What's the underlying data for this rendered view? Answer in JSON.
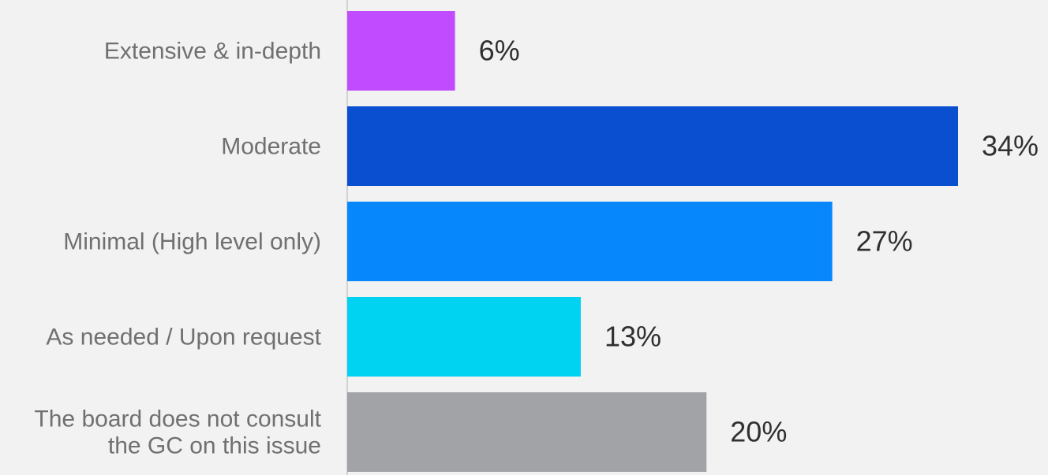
{
  "chart_data": {
    "type": "bar",
    "orientation": "horizontal",
    "categories": [
      [
        "Extensive & in-depth"
      ],
      [
        "Moderate"
      ],
      [
        "Minimal (High level only)"
      ],
      [
        "As needed / Upon request"
      ],
      [
        "The board does not consult",
        "the GC on this issue"
      ]
    ],
    "values": [
      6,
      34,
      27,
      13,
      20
    ],
    "value_labels": [
      "6%",
      "34%",
      "27%",
      "13%",
      "20%"
    ],
    "colors": [
      "#c14cff",
      "#0b4fd1",
      "#0687fb",
      "#00d2f2",
      "#a2a3a6"
    ],
    "axis_color": "#c8c8c8",
    "background": "#f2f2f2",
    "xlim": [
      0,
      34
    ],
    "grid": false,
    "legend": "none"
  }
}
